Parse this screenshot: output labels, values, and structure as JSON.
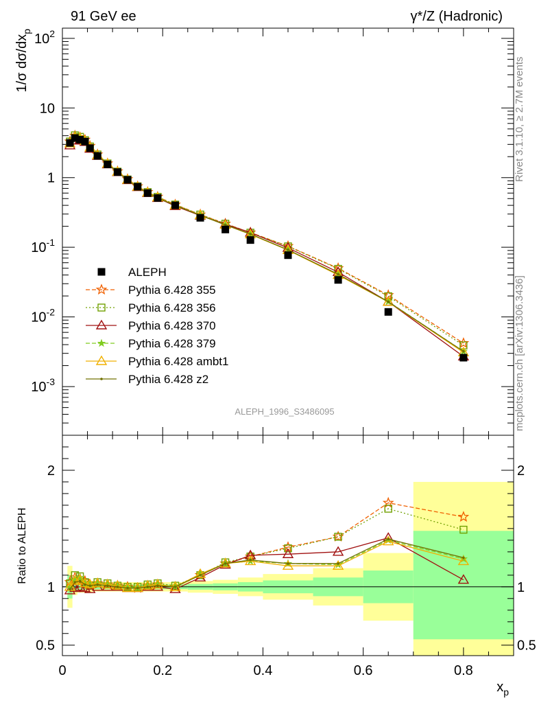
{
  "header": {
    "left": "91 GeV ee",
    "right": "γ*/Z (Hadronic)"
  },
  "sidebar": {
    "rivet": "Rivet 3.1.10, ≥ 2.7M events",
    "site": "mcplots.cern.ch [arXiv:1306.3436]"
  },
  "watermark": "ALEPH_1996_S3486095",
  "colors": {
    "data": "#000000",
    "p355": "#f06000",
    "p356": "#70a000",
    "p370": "#a01010",
    "p379": "#80cc20",
    "ambt1": "#f0b000",
    "z2": "#707000",
    "band_yellow": "#ffff99",
    "band_green": "#99ff99"
  },
  "chart_data": [
    {
      "type": "scatter",
      "panel": "main",
      "ylabel": "1/σ dσ/dx_p",
      "yscale": "log",
      "xlim": [
        0,
        0.9
      ],
      "ylim": [
        0.0002,
        140
      ],
      "ytick_labels": [
        "10^2",
        "10",
        "1",
        "10^-1",
        "10^-2",
        "10^-3"
      ],
      "legend_placement": "middle-left",
      "series": [
        {
          "name": "ALEPH",
          "style": "data",
          "x": [
            0.015,
            0.025,
            0.035,
            0.045,
            0.055,
            0.07,
            0.09,
            0.11,
            0.13,
            0.15,
            0.17,
            0.19,
            0.225,
            0.275,
            0.325,
            0.375,
            0.45,
            0.55,
            0.65,
            0.8
          ],
          "y": [
            3.15,
            3.7,
            3.5,
            3.3,
            2.65,
            2.05,
            1.55,
            1.2,
            0.93,
            0.74,
            0.6,
            0.51,
            0.4,
            0.265,
            0.18,
            0.127,
            0.077,
            0.034,
            0.0118,
            0.0026
          ]
        },
        {
          "name": "Pythia 6.428 355",
          "style": "p355",
          "x": [
            0.015,
            0.025,
            0.035,
            0.045,
            0.055,
            0.07,
            0.09,
            0.11,
            0.13,
            0.15,
            0.17,
            0.19,
            0.225,
            0.275,
            0.325,
            0.375,
            0.45,
            0.55,
            0.65,
            0.8
          ],
          "y": [
            3.3,
            4.0,
            3.8,
            3.5,
            2.85,
            2.15,
            1.6,
            1.23,
            0.95,
            0.75,
            0.62,
            0.53,
            0.41,
            0.295,
            0.218,
            0.163,
            0.104,
            0.05,
            0.0205,
            0.0042
          ]
        },
        {
          "name": "Pythia 6.428 356",
          "style": "p356",
          "x": [
            0.015,
            0.025,
            0.035,
            0.045,
            0.055,
            0.07,
            0.09,
            0.11,
            0.13,
            0.15,
            0.17,
            0.19,
            0.225,
            0.275,
            0.325,
            0.375,
            0.45,
            0.55,
            0.65,
            0.8
          ],
          "y": [
            3.3,
            4.05,
            3.85,
            3.45,
            2.8,
            2.15,
            1.6,
            1.22,
            0.94,
            0.75,
            0.62,
            0.53,
            0.41,
            0.295,
            0.218,
            0.162,
            0.103,
            0.049,
            0.0198,
            0.0039
          ]
        },
        {
          "name": "Pythia 6.428 370",
          "style": "p370",
          "x": [
            0.015,
            0.025,
            0.035,
            0.045,
            0.055,
            0.07,
            0.09,
            0.11,
            0.13,
            0.15,
            0.17,
            0.19,
            0.225,
            0.275,
            0.325,
            0.375,
            0.45,
            0.55,
            0.65,
            0.8
          ],
          "y": [
            2.9,
            3.4,
            3.5,
            3.25,
            2.6,
            2.05,
            1.55,
            1.2,
            0.92,
            0.73,
            0.6,
            0.51,
            0.39,
            0.285,
            0.215,
            0.162,
            0.098,
            0.044,
            0.0165,
            0.0027
          ]
        },
        {
          "name": "Pythia 6.428 379",
          "style": "p379",
          "x": [
            0.015,
            0.025,
            0.035,
            0.045,
            0.055,
            0.07,
            0.09,
            0.11,
            0.13,
            0.15,
            0.17,
            0.19,
            0.225,
            0.275,
            0.325,
            0.375,
            0.45,
            0.55,
            0.65,
            0.8
          ],
          "y": [
            3.1,
            3.9,
            3.8,
            3.4,
            2.75,
            2.1,
            1.6,
            1.22,
            0.93,
            0.74,
            0.61,
            0.52,
            0.4,
            0.29,
            0.21,
            0.155,
            0.092,
            0.041,
            0.0166,
            0.0032
          ]
        },
        {
          "name": "Pythia 6.428 ambt1",
          "style": "ambt1",
          "x": [
            0.015,
            0.025,
            0.035,
            0.045,
            0.055,
            0.07,
            0.09,
            0.11,
            0.13,
            0.15,
            0.17,
            0.19,
            0.225,
            0.275,
            0.325,
            0.375,
            0.45,
            0.55,
            0.65,
            0.8
          ],
          "y": [
            3.1,
            3.8,
            3.7,
            3.35,
            2.7,
            2.1,
            1.58,
            1.21,
            0.93,
            0.74,
            0.61,
            0.52,
            0.4,
            0.29,
            0.21,
            0.153,
            0.091,
            0.04,
            0.0164,
            0.0031
          ]
        },
        {
          "name": "Pythia 6.428 z2",
          "style": "z2",
          "x": [
            0.015,
            0.025,
            0.035,
            0.045,
            0.055,
            0.07,
            0.09,
            0.11,
            0.13,
            0.15,
            0.17,
            0.19,
            0.225,
            0.275,
            0.325,
            0.375,
            0.45,
            0.55,
            0.65,
            0.8
          ],
          "y": [
            3.05,
            3.75,
            3.65,
            3.3,
            2.68,
            2.08,
            1.57,
            1.2,
            0.92,
            0.73,
            0.6,
            0.51,
            0.4,
            0.288,
            0.21,
            0.155,
            0.092,
            0.041,
            0.0165,
            0.0032
          ]
        }
      ]
    },
    {
      "type": "line",
      "panel": "ratio",
      "ylabel": "Ratio to ALEPH",
      "xlabel": "x_p",
      "xlim": [
        0,
        0.9
      ],
      "ylim": [
        0.41,
        2.3
      ],
      "xtick_labels": [
        "0",
        "0.2",
        "0.4",
        "0.6",
        "0.8"
      ],
      "ytick_labels": [
        "0.5",
        "1",
        "2"
      ],
      "bands": [
        {
          "x0": 0.01,
          "x1": 0.02,
          "lo_yellow": 0.82,
          "hi_yellow": 1.18,
          "lo_green": 0.9,
          "hi_green": 1.1
        },
        {
          "x0": 0.02,
          "x1": 0.03,
          "lo_yellow": 0.93,
          "hi_yellow": 1.07,
          "lo_green": 0.96,
          "hi_green": 1.04
        },
        {
          "x0": 0.03,
          "x1": 0.06,
          "lo_yellow": 0.95,
          "hi_yellow": 1.05,
          "lo_green": 0.975,
          "hi_green": 1.025
        },
        {
          "x0": 0.06,
          "x1": 0.2,
          "lo_yellow": 0.96,
          "hi_yellow": 1.04,
          "lo_green": 0.98,
          "hi_green": 1.02
        },
        {
          "x0": 0.2,
          "x1": 0.25,
          "lo_yellow": 0.96,
          "hi_yellow": 1.04,
          "lo_green": 0.98,
          "hi_green": 1.02
        },
        {
          "x0": 0.25,
          "x1": 0.3,
          "lo_yellow": 0.95,
          "hi_yellow": 1.05,
          "lo_green": 0.975,
          "hi_green": 1.025
        },
        {
          "x0": 0.3,
          "x1": 0.35,
          "lo_yellow": 0.94,
          "hi_yellow": 1.06,
          "lo_green": 0.97,
          "hi_green": 1.03
        },
        {
          "x0": 0.35,
          "x1": 0.4,
          "lo_yellow": 0.92,
          "hi_yellow": 1.08,
          "lo_green": 0.96,
          "hi_green": 1.04
        },
        {
          "x0": 0.4,
          "x1": 0.5,
          "lo_yellow": 0.89,
          "hi_yellow": 1.11,
          "lo_green": 0.945,
          "hi_green": 1.055
        },
        {
          "x0": 0.5,
          "x1": 0.6,
          "lo_yellow": 0.84,
          "hi_yellow": 1.16,
          "lo_green": 0.92,
          "hi_green": 1.08
        },
        {
          "x0": 0.6,
          "x1": 0.7,
          "lo_yellow": 0.71,
          "hi_yellow": 1.29,
          "lo_green": 0.86,
          "hi_green": 1.14
        },
        {
          "x0": 0.7,
          "x1": 0.9,
          "lo_yellow": 0.41,
          "hi_yellow": 1.9,
          "lo_green": 0.55,
          "hi_green": 1.48
        }
      ],
      "series": [
        {
          "name": "Pythia 6.428 355",
          "style": "p355",
          "x": [
            0.015,
            0.025,
            0.035,
            0.045,
            0.055,
            0.07,
            0.09,
            0.11,
            0.13,
            0.15,
            0.17,
            0.19,
            0.225,
            0.275,
            0.325,
            0.375,
            0.45,
            0.55,
            0.65,
            0.8
          ],
          "y": [
            1.04,
            1.08,
            1.07,
            1.05,
            1.01,
            1.03,
            1.02,
            1.01,
            1.0,
            0.99,
            1.01,
            1.02,
            1.0,
            1.1,
            1.2,
            1.26,
            1.34,
            1.43,
            1.72,
            1.6
          ]
        },
        {
          "name": "Pythia 6.428 356",
          "style": "p356",
          "x": [
            0.015,
            0.025,
            0.035,
            0.045,
            0.055,
            0.07,
            0.09,
            0.11,
            0.13,
            0.15,
            0.17,
            0.19,
            0.225,
            0.275,
            0.325,
            0.375,
            0.45,
            0.55,
            0.65,
            0.8
          ],
          "y": [
            1.03,
            1.1,
            1.09,
            1.04,
            1.01,
            1.04,
            1.03,
            1.01,
            1.0,
            1.0,
            1.02,
            1.03,
            1.01,
            1.1,
            1.21,
            1.26,
            1.33,
            1.43,
            1.67,
            1.49
          ]
        },
        {
          "name": "Pythia 6.428 370",
          "style": "p370",
          "x": [
            0.015,
            0.025,
            0.035,
            0.045,
            0.055,
            0.07,
            0.09,
            0.11,
            0.13,
            0.15,
            0.17,
            0.19,
            0.225,
            0.275,
            0.325,
            0.375,
            0.45,
            0.55,
            0.65,
            0.8
          ],
          "y": [
            0.97,
            0.99,
            1.0,
            0.99,
            0.98,
            1.0,
            1.0,
            1.0,
            0.99,
            0.99,
            1.0,
            1.0,
            0.98,
            1.08,
            1.19,
            1.27,
            1.28,
            1.3,
            1.42,
            1.06
          ]
        },
        {
          "name": "Pythia 6.428 379",
          "style": "p379",
          "x": [
            0.015,
            0.025,
            0.035,
            0.045,
            0.055,
            0.07,
            0.09,
            0.11,
            0.13,
            0.15,
            0.17,
            0.19,
            0.225,
            0.275,
            0.325,
            0.375,
            0.45,
            0.55,
            0.65,
            0.8
          ],
          "y": [
            0.99,
            1.06,
            1.08,
            1.03,
            1.02,
            1.03,
            1.02,
            1.01,
            1.0,
            0.99,
            1.01,
            1.02,
            1.0,
            1.11,
            1.2,
            1.22,
            1.2,
            1.19,
            1.4,
            1.24
          ]
        },
        {
          "name": "Pythia 6.428 ambt1",
          "style": "ambt1",
          "x": [
            0.015,
            0.025,
            0.035,
            0.045,
            0.055,
            0.07,
            0.09,
            0.11,
            0.13,
            0.15,
            0.17,
            0.19,
            0.225,
            0.275,
            0.325,
            0.375,
            0.45,
            0.55,
            0.65,
            0.8
          ],
          "y": [
            1.0,
            1.05,
            1.06,
            1.03,
            1.02,
            1.03,
            1.02,
            1.01,
            0.99,
            0.99,
            1.01,
            1.02,
            1.0,
            1.11,
            1.2,
            1.22,
            1.18,
            1.18,
            1.39,
            1.22
          ]
        },
        {
          "name": "Pythia 6.428 z2",
          "style": "z2",
          "x": [
            0.015,
            0.025,
            0.035,
            0.045,
            0.055,
            0.07,
            0.09,
            0.11,
            0.13,
            0.15,
            0.17,
            0.19,
            0.225,
            0.275,
            0.325,
            0.375,
            0.45,
            0.55,
            0.65,
            0.8
          ],
          "y": [
            0.98,
            1.04,
            1.05,
            1.02,
            1.01,
            1.02,
            1.01,
            1.0,
            0.99,
            0.99,
            1.0,
            1.01,
            1.0,
            1.1,
            1.2,
            1.23,
            1.2,
            1.2,
            1.41,
            1.25
          ]
        }
      ]
    }
  ]
}
